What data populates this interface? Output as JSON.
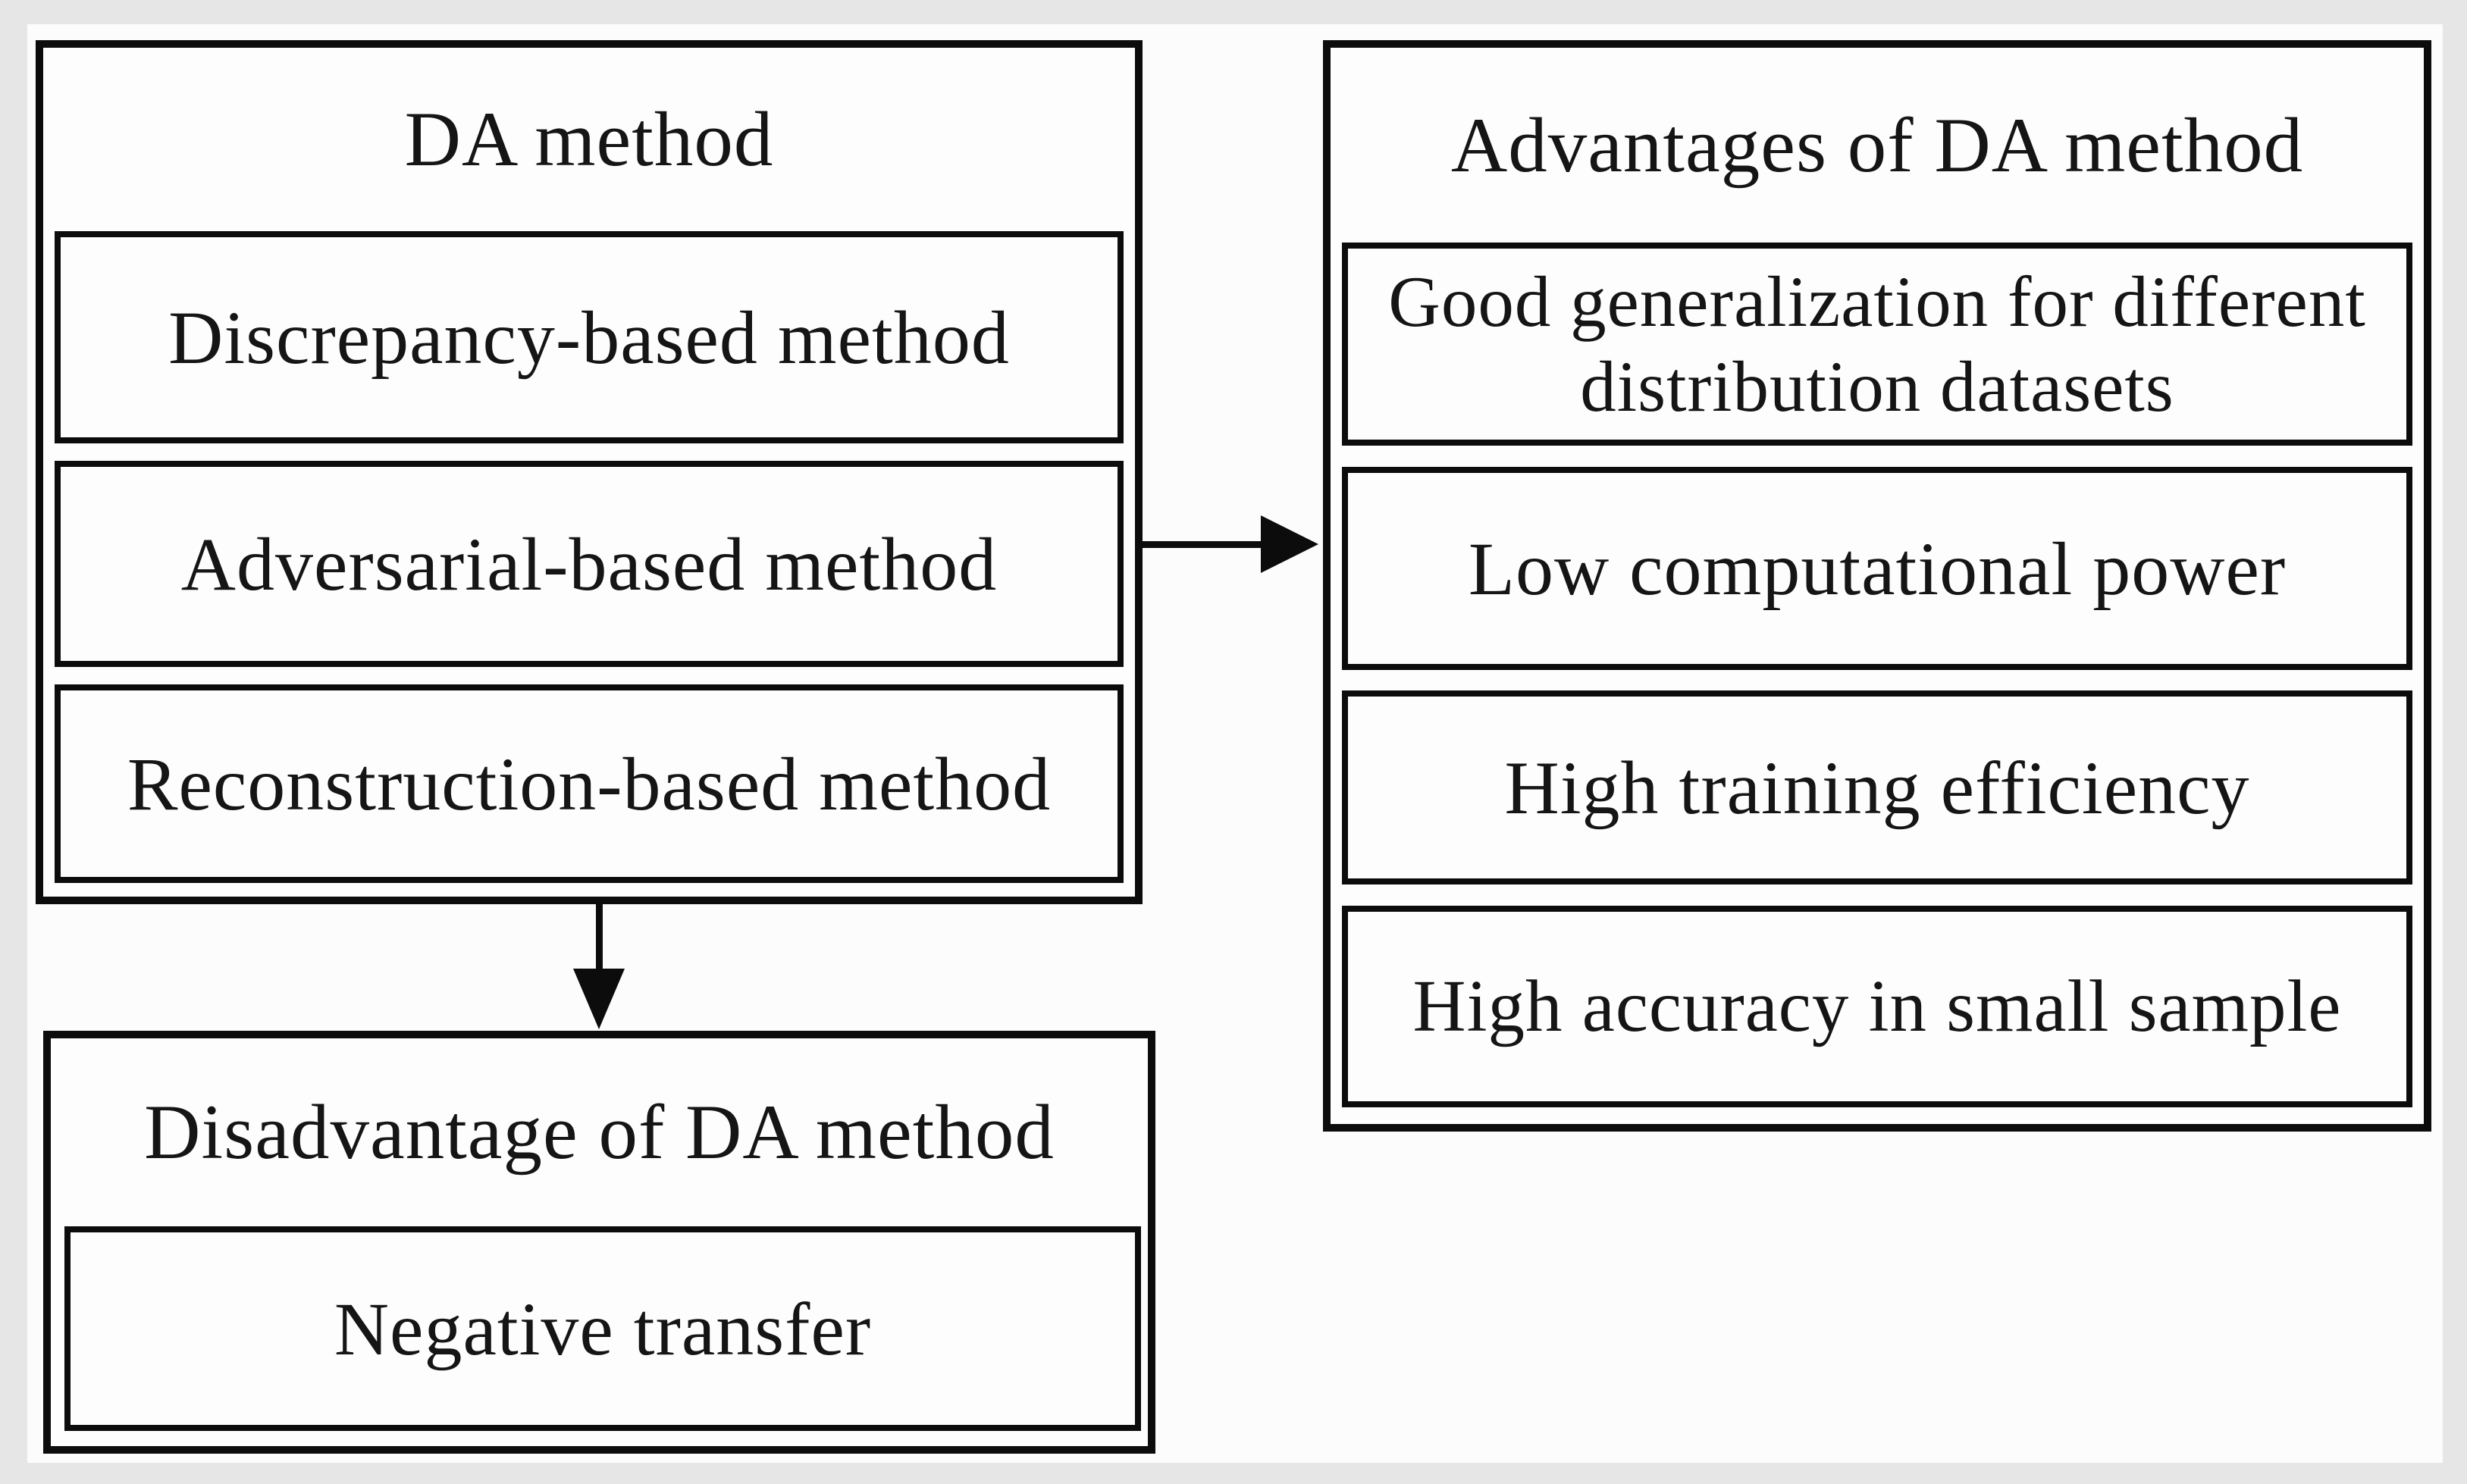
{
  "diagram": {
    "da_method": {
      "title": "DA method",
      "items": [
        "Discrepancy-based method",
        "Adversarial-based method",
        "Reconstruction-based method"
      ]
    },
    "advantages": {
      "title": "Advantages of DA method",
      "items": [
        "Good generalization for different distribution datasets",
        "Low computational power",
        "High training efficiency",
        "High accuracy in small sample"
      ]
    },
    "disadvantage": {
      "title": "Disadvantage of DA method",
      "items": [
        "Negative transfer"
      ]
    },
    "relations": [
      {
        "from": "DA method",
        "to": "Advantages of DA method",
        "type": "arrow-right"
      },
      {
        "from": "DA method",
        "to": "Disadvantage of DA method",
        "type": "arrow-down"
      }
    ],
    "colors": {
      "line": "#0c0c0c",
      "text": "#151515",
      "background": "#fcfcfc",
      "page_margin": "#e6e6e6"
    }
  }
}
